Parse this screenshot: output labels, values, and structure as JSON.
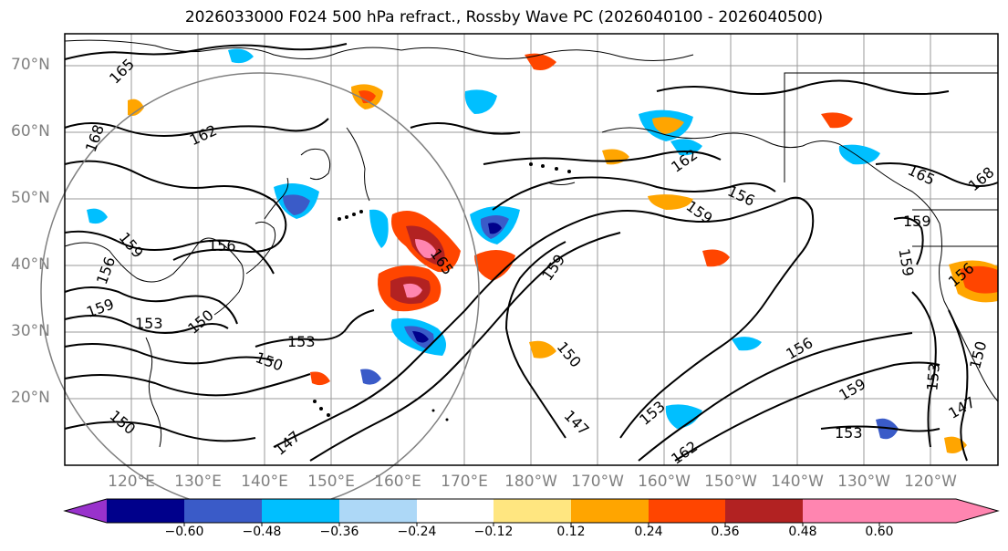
{
  "title": "2026033000 F024 500 hPa refract., Rossby Wave PC (2026040100 - 2026040500)",
  "lat_labels": [
    "70°N",
    "60°N",
    "50°N",
    "40°N",
    "30°N",
    "20°N"
  ],
  "lon_labels": [
    "120°E",
    "130°E",
    "140°E",
    "150°E",
    "160°E",
    "170°E",
    "180°W",
    "170°W",
    "160°W",
    "150°W",
    "140°W",
    "130°W",
    "120°W"
  ],
  "contour_labels": [
    "165",
    "168",
    "162",
    "159",
    "156",
    "156",
    "159",
    "153",
    "150",
    "153",
    "150",
    "147",
    "150",
    "165",
    "162",
    "159",
    "156",
    "159",
    "150",
    "147",
    "153",
    "162",
    "156",
    "159",
    "153",
    "165",
    "168",
    "159",
    "159",
    "156",
    "153",
    "150",
    "147"
  ],
  "colorbar": {
    "ticks": [
      "−0.60",
      "−0.48",
      "−0.36",
      "−0.24",
      "−0.12",
      "0.12",
      "0.24",
      "0.36",
      "0.48",
      "0.60"
    ],
    "colors": [
      "#9932CC",
      "#00008B",
      "#3A5BC8",
      "#00BFFF",
      "#ADD8F7",
      "#FFFFFF",
      "#FFE680",
      "#FFA500",
      "#FF4500",
      "#B22222",
      "#FF85B0"
    ]
  }
}
